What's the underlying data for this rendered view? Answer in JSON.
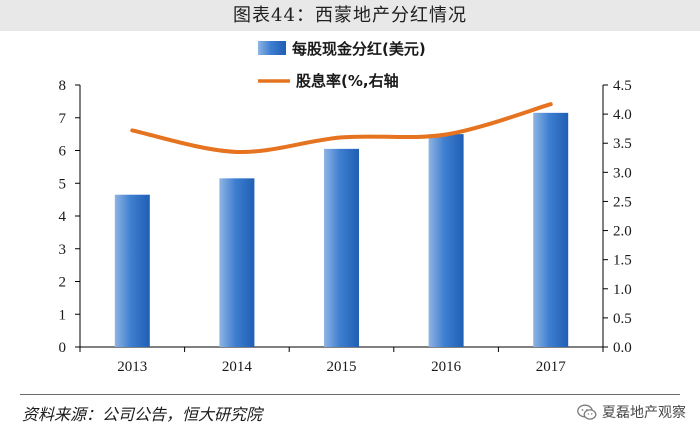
{
  "header": {
    "title": "图表44：西蒙地产分红情况"
  },
  "legend": {
    "bar_label": "每股现金分红(美元)",
    "line_label": "股息率(%,右轴"
  },
  "footer": {
    "source": "资料来源：公司公告，恒大研究院",
    "watermark": "夏磊地产观察",
    "watermark_icon": "wechat-icon"
  },
  "colors": {
    "bar_light": "#8fb4e3",
    "bar_mid": "#3f7fd0",
    "bar_dark": "#1f5fb4",
    "line": "#e5731f",
    "title_bg": "#e8e8e8"
  },
  "chart_data": {
    "type": "bar",
    "title": "图表44：西蒙地产分红情况",
    "categories": [
      "2013",
      "2014",
      "2015",
      "2016",
      "2017"
    ],
    "series": [
      {
        "name": "每股现金分红(美元)",
        "type": "bar",
        "axis": "left",
        "values": [
          4.65,
          5.15,
          6.05,
          6.5,
          7.15
        ]
      },
      {
        "name": "股息率(%,右轴",
        "type": "line",
        "axis": "right",
        "values": [
          3.72,
          3.35,
          3.6,
          3.65,
          4.17
        ]
      }
    ],
    "y_left": {
      "min": 0,
      "max": 8,
      "step": 1,
      "ticks": [
        "0",
        "1",
        "2",
        "3",
        "4",
        "5",
        "6",
        "7",
        "8"
      ]
    },
    "y_right": {
      "min": 0,
      "max": 4.5,
      "step": 0.5,
      "ticks": [
        "0.0",
        "0.5",
        "1.0",
        "1.5",
        "2.0",
        "2.5",
        "3.0",
        "3.5",
        "4.0",
        "4.5"
      ]
    },
    "legend_position": "top-center",
    "grid": false
  }
}
